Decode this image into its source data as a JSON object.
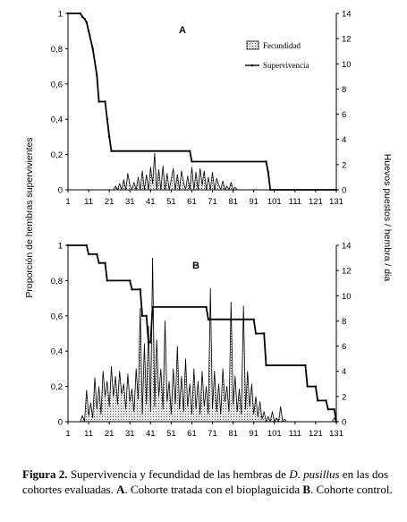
{
  "chart_data": [
    {
      "type": "line",
      "panel_label": "A",
      "xticks": [
        1,
        11,
        21,
        31,
        41,
        51,
        61,
        71,
        81,
        91,
        101,
        111,
        121,
        131
      ],
      "xlim": [
        1,
        131
      ],
      "ylim": [
        0,
        1
      ],
      "yticks": [
        "0",
        "0,2",
        "0,4",
        "0,6",
        "0,8",
        "1"
      ],
      "ylim_right": [
        0,
        14
      ],
      "yticks_right": [
        "0",
        "2",
        "4",
        "6",
        "8",
        "10",
        "12",
        "14"
      ],
      "legend": [
        "Fecundidad",
        "Supervivencia"
      ],
      "series": [
        {
          "name": "Supervivencia",
          "axis": "left",
          "x": [
            1,
            7,
            8,
            9,
            10,
            11,
            13,
            15,
            16,
            19,
            20,
            21,
            22,
            60,
            61,
            97,
            98,
            99,
            131
          ],
          "y": [
            1,
            1,
            0.98,
            0.97,
            0.95,
            0.9,
            0.8,
            0.65,
            0.5,
            0.5,
            0.4,
            0.3,
            0.22,
            0.22,
            0.16,
            0.16,
            0.1,
            0,
            0
          ]
        },
        {
          "name": "Fecundidad",
          "axis": "right",
          "x": [
            1,
            23,
            24,
            25,
            26,
            27,
            28,
            29,
            30,
            31,
            32,
            33,
            34,
            35,
            36,
            37,
            38,
            39,
            40,
            41,
            42,
            43,
            44,
            45,
            46,
            47,
            48,
            49,
            50,
            51,
            52,
            53,
            54,
            55,
            56,
            57,
            58,
            59,
            60,
            61,
            62,
            63,
            64,
            65,
            66,
            67,
            68,
            69,
            70,
            71,
            72,
            73,
            74,
            75,
            76,
            77,
            78,
            79,
            80,
            81,
            82,
            83,
            131
          ],
          "y": [
            0,
            0,
            0.3,
            0,
            0.5,
            0,
            0.8,
            0,
            1.3,
            0.4,
            0,
            0.6,
            0,
            1.0,
            0,
            1.5,
            0,
            1.2,
            0,
            1.8,
            0.5,
            2.9,
            0,
            1.6,
            0,
            1.9,
            0,
            1.3,
            0,
            0.8,
            1.7,
            0,
            1.2,
            0,
            1.5,
            0.6,
            0,
            1.1,
            0,
            1.8,
            0,
            1.4,
            0,
            1.7,
            0.4,
            1.5,
            0,
            1.0,
            0,
            1.4,
            0,
            0.9,
            0.4,
            0,
            0.7,
            0,
            0.3,
            0,
            0.6,
            0,
            0.2,
            0,
            0
          ]
        }
      ]
    },
    {
      "type": "line",
      "panel_label": "B",
      "xticks": [
        1,
        11,
        21,
        31,
        41,
        51,
        61,
        71,
        81,
        91,
        101,
        111,
        121,
        131
      ],
      "xlim": [
        1,
        131
      ],
      "ylim": [
        0,
        1
      ],
      "yticks": [
        "0",
        "0,2",
        "0,4",
        "0,6",
        "0,8",
        "1"
      ],
      "ylim_right": [
        0,
        14
      ],
      "yticks_right": [
        "0",
        "2",
        "4",
        "6",
        "8",
        "10",
        "12",
        "14"
      ],
      "series": [
        {
          "name": "Supervivencia",
          "axis": "left",
          "x": [
            1,
            10,
            11,
            15,
            16,
            19,
            20,
            31,
            32,
            36,
            37,
            39,
            40,
            41,
            42,
            68,
            69,
            91,
            92,
            96,
            97,
            116,
            117,
            121,
            122,
            126,
            127,
            130,
            131
          ],
          "y": [
            1,
            1,
            0.95,
            0.95,
            0.9,
            0.9,
            0.8,
            0.8,
            0.75,
            0.75,
            0.6,
            0.6,
            0.45,
            0.45,
            0.65,
            0.65,
            0.58,
            0.58,
            0.5,
            0.5,
            0.32,
            0.32,
            0.2,
            0.2,
            0.12,
            0.12,
            0.07,
            0.07,
            0
          ]
        },
        {
          "name": "Fecundidad",
          "axis": "right",
          "x": [
            1,
            7,
            8,
            9,
            10,
            11,
            12,
            13,
            14,
            15,
            16,
            17,
            18,
            19,
            20,
            21,
            22,
            23,
            24,
            25,
            26,
            27,
            28,
            29,
            30,
            31,
            32,
            33,
            34,
            35,
            36,
            37,
            38,
            39,
            40,
            41,
            42,
            43,
            44,
            45,
            46,
            47,
            48,
            49,
            50,
            51,
            52,
            53,
            54,
            55,
            56,
            57,
            58,
            59,
            60,
            61,
            62,
            63,
            64,
            65,
            66,
            67,
            68,
            69,
            70,
            71,
            72,
            73,
            74,
            75,
            76,
            77,
            78,
            79,
            80,
            81,
            82,
            83,
            84,
            85,
            86,
            87,
            88,
            89,
            90,
            91,
            92,
            93,
            94,
            95,
            96,
            97,
            98,
            99,
            100,
            101,
            102,
            103,
            104,
            105,
            106,
            107,
            108,
            109,
            110,
            111,
            112,
            113,
            114,
            115,
            116,
            117,
            118,
            119,
            120,
            121,
            122,
            123,
            124,
            125,
            126,
            127,
            128,
            129,
            130,
            131
          ],
          "y": [
            0,
            0,
            0.5,
            0,
            2.5,
            0.5,
            1.5,
            0.3,
            3.5,
            1.0,
            2.8,
            0.6,
            4.0,
            2.0,
            3.2,
            1.2,
            4.4,
            2.0,
            3.6,
            1.4,
            4.0,
            2.2,
            3.0,
            1.0,
            3.8,
            1.6,
            2.6,
            0.8,
            4.2,
            1.8,
            9.0,
            0.6,
            6.2,
            1.4,
            7.6,
            0.8,
            13.0,
            1.2,
            6.5,
            2.0,
            4.2,
            1.0,
            8.0,
            1.6,
            3.2,
            0.6,
            4.2,
            1.4,
            6.0,
            1.0,
            3.6,
            0.8,
            5.0,
            1.2,
            3.0,
            0.6,
            4.2,
            1.0,
            3.2,
            0.6,
            4.0,
            1.2,
            2.8,
            0.6,
            10.6,
            1.0,
            4.0,
            0.8,
            3.0,
            0.6,
            4.2,
            1.6,
            2.8,
            0.8,
            9.5,
            1.4,
            3.6,
            0.8,
            2.6,
            0.6,
            9.2,
            1.0,
            4.0,
            1.2,
            3.0,
            0.6,
            2.0,
            0.4,
            1.6,
            0.2,
            0.8,
            0,
            0.4,
            0,
            0.8,
            0,
            0.3,
            0,
            1.2,
            0,
            0.2,
            0,
            0,
            0,
            0,
            0,
            0,
            0,
            0,
            0,
            0,
            0,
            0,
            0,
            0,
            0,
            0,
            0,
            0,
            0,
            0,
            0,
            0,
            0,
            0.3,
            0
          ]
        }
      ]
    }
  ],
  "axes": {
    "left_label": "Proporción de hembras supervivientes",
    "right_label": "Huevos puestos / hembra / dia"
  },
  "caption": {
    "figure_label": "Figura 2.",
    "text_1": " Supervivencia y fecundidad de las hembras de ",
    "species": "D. pusillus",
    "text_2": " en las dos cohortes evaluadas. ",
    "label_a": "A",
    "text_3": ". Cohorte tratada con el bioplaguicida ",
    "label_b": "B",
    "text_4": ". Cohorte control."
  }
}
